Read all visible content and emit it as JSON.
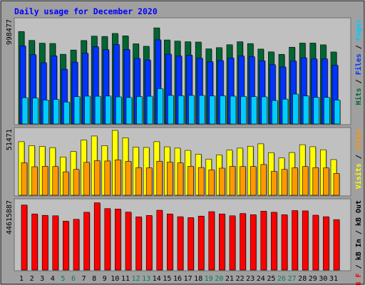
{
  "chart_data": {
    "type": "bar",
    "title": "Daily usage for December 2020",
    "categories": [
      "1",
      "2",
      "3",
      "4",
      "5",
      "6",
      "7",
      "8",
      "9",
      "10",
      "11",
      "12",
      "13",
      "14",
      "15",
      "16",
      "17",
      "18",
      "19",
      "20",
      "21",
      "22",
      "23",
      "24",
      "25",
      "26",
      "27",
      "28",
      "29",
      "30",
      "31"
    ],
    "weekend_days": [
      "5",
      "6",
      "12",
      "13",
      "19",
      "20",
      "26",
      "27"
    ],
    "panels": [
      {
        "id": "hits-files-pages",
        "y_max_label": "998477",
        "ylim": [
          0,
          998477
        ],
        "legend_order": [
          "Hits",
          "/",
          "Files",
          "/",
          "Pages"
        ],
        "series": [
          {
            "name": "Hits",
            "color": "#006633",
            "values": [
              894000,
              808000,
              781000,
              778000,
              674000,
              715000,
              807000,
              849000,
              846000,
              875000,
              852000,
              775000,
              751000,
              929000,
              812000,
              801000,
              795000,
              792000,
              726000,
              738000,
              766000,
              795000,
              777000,
              724000,
              697000,
              673000,
              742000,
              782000,
              782000,
              765000,
              696000
            ]
          },
          {
            "name": "Files",
            "color": "#0033ff",
            "values": [
              755000,
              670000,
              592000,
              659000,
              529000,
              598000,
              684000,
              747000,
              718000,
              768000,
              720000,
              634000,
              619000,
              813000,
              675000,
              657000,
              666000,
              636000,
              602000,
              613000,
              638000,
              657000,
              650000,
              611000,
              573000,
              551000,
              609000,
              640000,
              629000,
              629000,
              568000
            ]
          },
          {
            "name": "Pages",
            "color": "#00ccff",
            "values": [
              254000,
              251000,
              232000,
              237000,
              212000,
              264000,
              269000,
              268000,
              270000,
              262000,
              256000,
              265000,
              268000,
              341000,
              276000,
              273000,
              276000,
              276000,
              271000,
              273000,
              269000,
              266000,
              264000,
              262000,
              227000,
              240000,
              289000,
              271000,
              258000,
              257000,
              231000
            ]
          }
        ]
      },
      {
        "id": "visits-sites",
        "y_max_label": "51471",
        "ylim": [
          0,
          51471
        ],
        "legend_order": [
          "Visits",
          "/",
          "Sites"
        ],
        "series": [
          {
            "name": "Visits",
            "color": "#ffff00",
            "values": [
              42500,
              39400,
              38800,
              37800,
              30400,
              34700,
              43800,
              47000,
              39400,
              51471,
              45600,
              38200,
              37900,
              42500,
              38400,
              37400,
              35600,
              32600,
              28700,
              32000,
              35800,
              37400,
              38900,
              40800,
              33800,
              29600,
              33900,
              40100,
              38500,
              36100,
              28300
            ]
          },
          {
            "name": "Sites",
            "color": "#ff9900",
            "values": [
              25800,
              22600,
              23000,
              22800,
              18600,
              20500,
              26100,
              27400,
              27200,
              28100,
              26900,
              21900,
              21700,
              27000,
              26300,
              25700,
              23000,
              22000,
              20100,
              21500,
              22900,
              22800,
              22800,
              24400,
              18900,
              20500,
              21800,
              22800,
              21900,
              21700,
              17300
            ]
          }
        ]
      },
      {
        "id": "kbytes",
        "y_max_label": "44615887",
        "ylim": [
          0,
          44615887
        ],
        "legend_order": [
          "kB F",
          "/",
          "kB In",
          "/",
          "kB Out"
        ],
        "series": [
          {
            "name": "kB F",
            "color": "#ff0000",
            "values": [
              42400000,
              36600000,
              35700000,
              35400000,
              31900000,
              33100000,
              37700000,
              43900000,
              40100000,
              39800000,
              37800000,
              34700000,
              35600000,
              39000000,
              36600000,
              34800000,
              34200000,
              35200000,
              38100000,
              36600000,
              35400000,
              36900000,
              36100000,
              38400000,
              37700000,
              36100000,
              38800000,
              38600000,
              35800000,
              34800000,
              32900000
            ]
          }
        ]
      }
    ]
  },
  "colors": {
    "frame": "#a0a0a0",
    "panel_bg": "#c0c0c0",
    "title": "#0000ff",
    "day_normal": "#000000",
    "day_weekend": "#00805c",
    "legend_slash": "#000000"
  }
}
